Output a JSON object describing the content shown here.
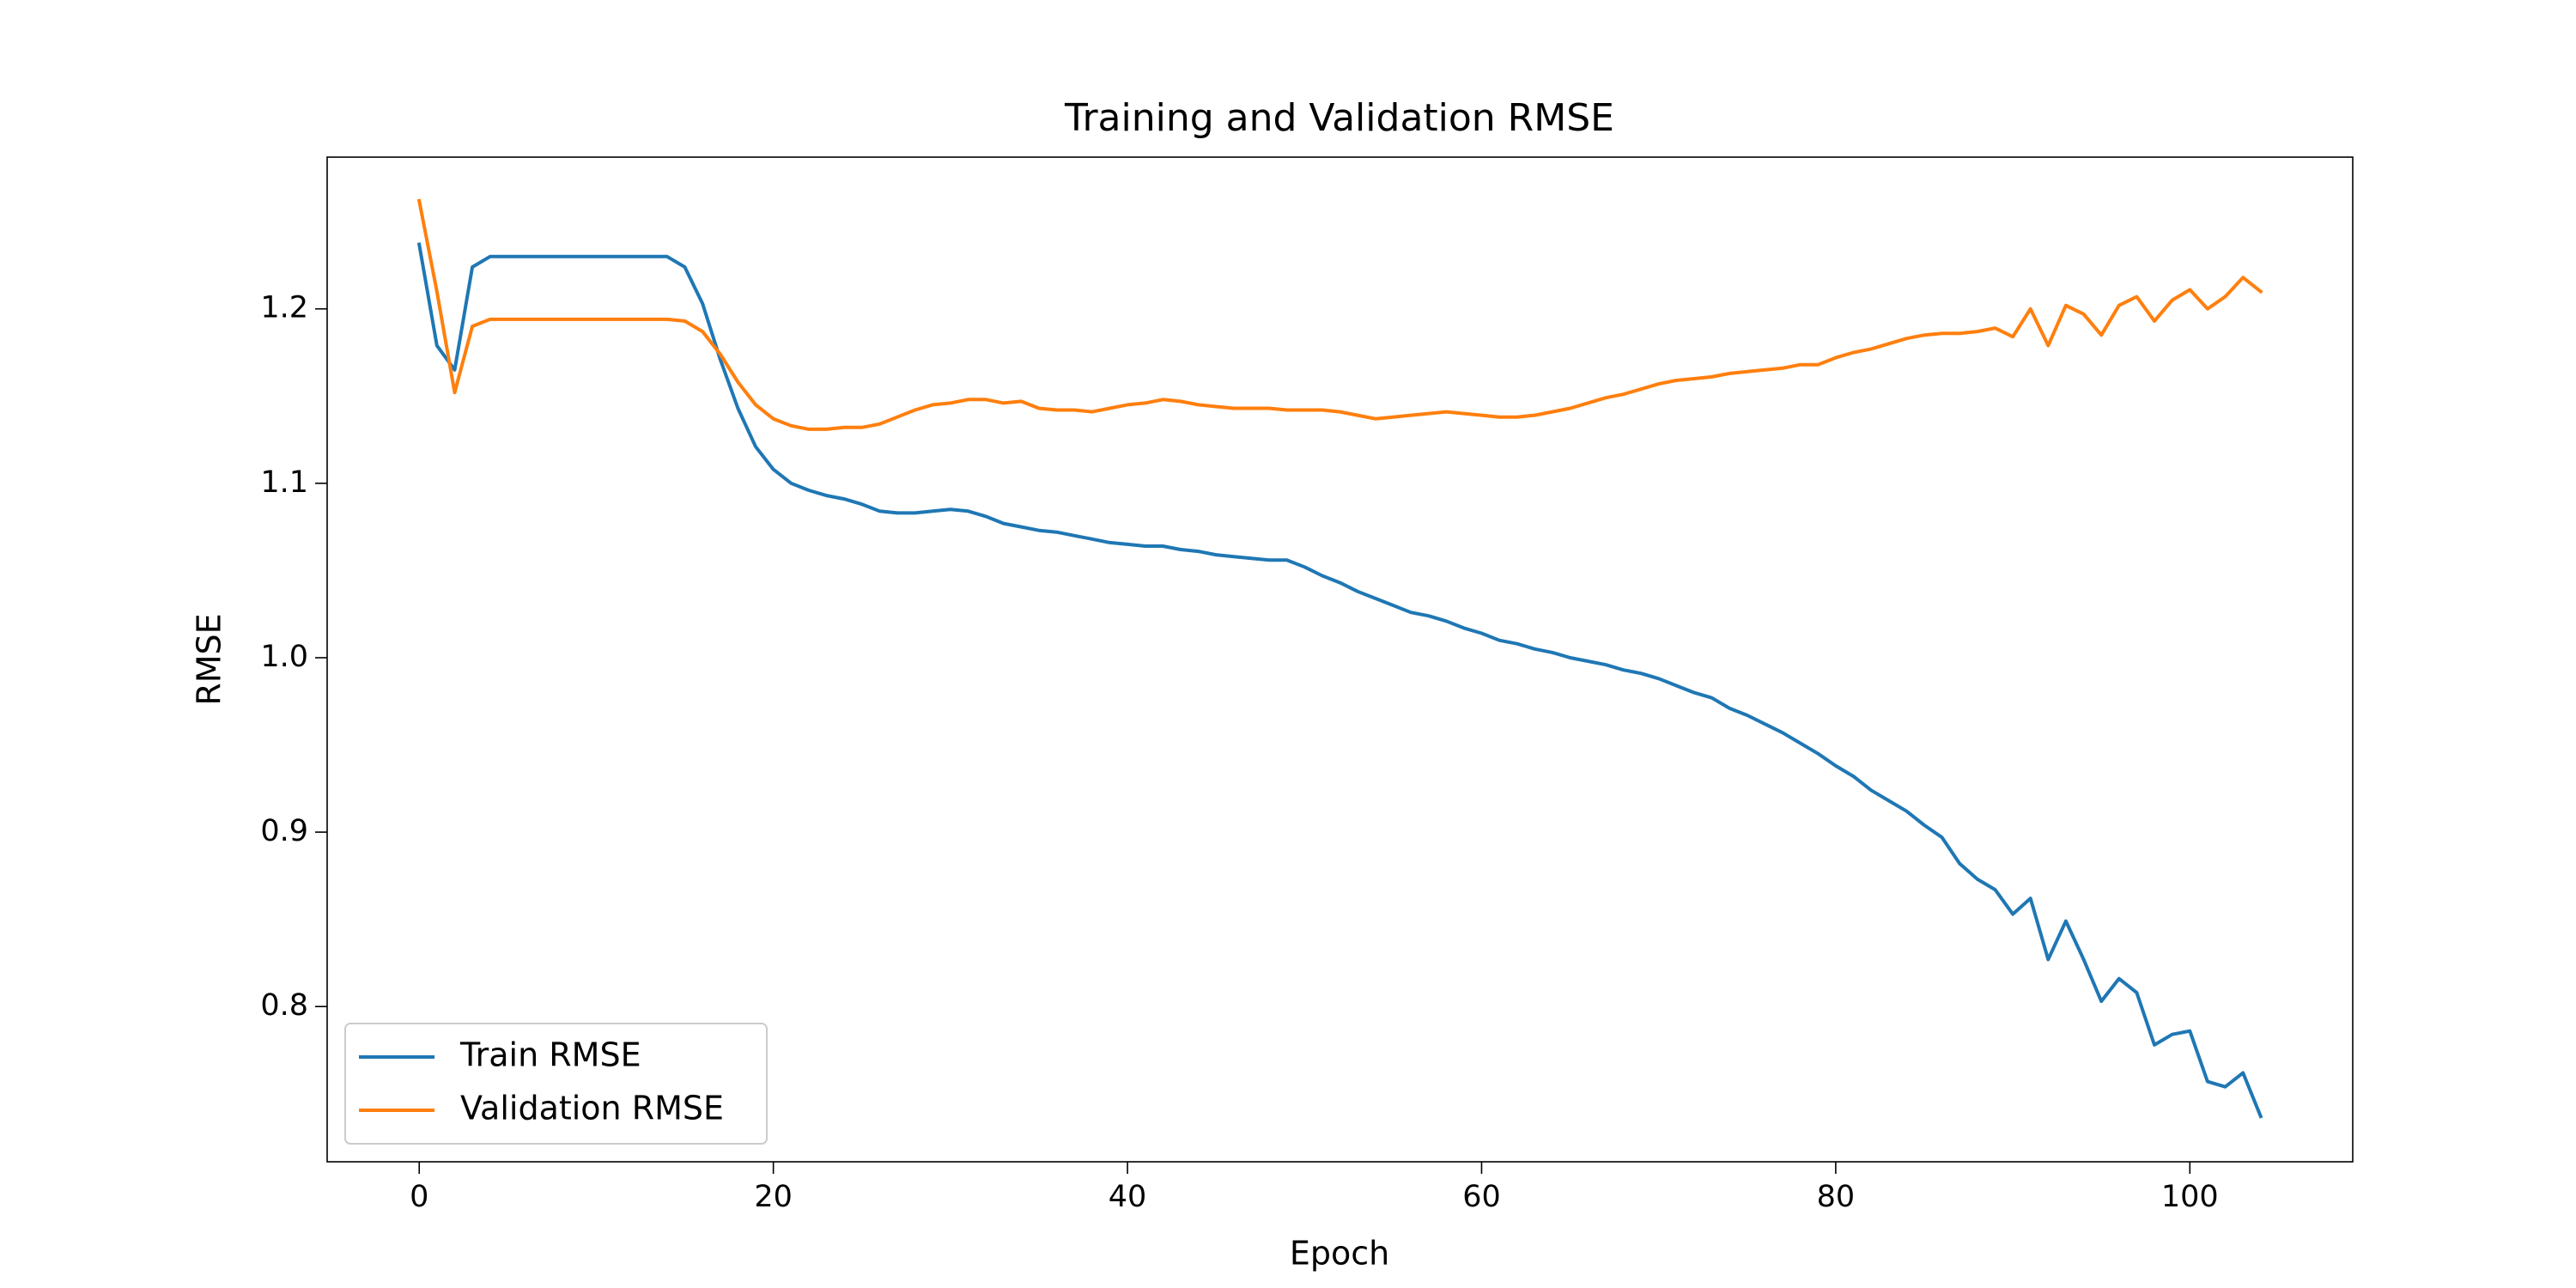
{
  "chart_data": {
    "type": "line",
    "title": "Training and Validation RMSE",
    "x_label": "Epoch",
    "y_label": "RMSE",
    "x": [
      0,
      1,
      2,
      3,
      4,
      5,
      6,
      7,
      8,
      9,
      10,
      11,
      12,
      13,
      14,
      15,
      16,
      17,
      18,
      19,
      20,
      21,
      22,
      23,
      24,
      25,
      26,
      27,
      28,
      29,
      30,
      31,
      32,
      33,
      34,
      35,
      36,
      37,
      38,
      39,
      40,
      41,
      42,
      43,
      44,
      45,
      46,
      47,
      48,
      49,
      50,
      51,
      52,
      53,
      54,
      55,
      56,
      57,
      58,
      59,
      60,
      61,
      62,
      63,
      64,
      65,
      66,
      67,
      68,
      69,
      70,
      71,
      72,
      73,
      74,
      75,
      76,
      77,
      78,
      79,
      80,
      81,
      82,
      83,
      84,
      85,
      86,
      87,
      88,
      89,
      90,
      91,
      92,
      93,
      94,
      95,
      96,
      97,
      98,
      99,
      100,
      101,
      102,
      103,
      104
    ],
    "series": [
      {
        "name": "Train RMSE",
        "color": "#1f77b4",
        "values": [
          1.237,
          1.179,
          1.165,
          1.224,
          1.23,
          1.23,
          1.23,
          1.23,
          1.23,
          1.23,
          1.23,
          1.23,
          1.23,
          1.23,
          1.23,
          1.224,
          1.203,
          1.171,
          1.143,
          1.121,
          1.108,
          1.1,
          1.096,
          1.093,
          1.091,
          1.088,
          1.084,
          1.083,
          1.083,
          1.084,
          1.085,
          1.084,
          1.081,
          1.077,
          1.075,
          1.073,
          1.072,
          1.07,
          1.068,
          1.066,
          1.065,
          1.064,
          1.064,
          1.062,
          1.061,
          1.059,
          1.058,
          1.057,
          1.056,
          1.056,
          1.052,
          1.047,
          1.043,
          1.038,
          1.034,
          1.03,
          1.026,
          1.024,
          1.021,
          1.017,
          1.014,
          1.01,
          1.008,
          1.005,
          1.003,
          1.0,
          0.998,
          0.996,
          0.993,
          0.991,
          0.988,
          0.984,
          0.98,
          0.977,
          0.971,
          0.967,
          0.962,
          0.957,
          0.951,
          0.945,
          0.938,
          0.932,
          0.924,
          0.918,
          0.912,
          0.904,
          0.897,
          0.882,
          0.873,
          0.867,
          0.853,
          0.862,
          0.827,
          0.849,
          0.827,
          0.803,
          0.816,
          0.808,
          0.778,
          0.784,
          0.786,
          0.757,
          0.754,
          0.762,
          0.737
        ]
      },
      {
        "name": "Validation RMSE",
        "color": "#ff7f0e",
        "values": [
          1.262,
          1.21,
          1.152,
          1.19,
          1.194,
          1.194,
          1.194,
          1.194,
          1.194,
          1.194,
          1.194,
          1.194,
          1.194,
          1.194,
          1.194,
          1.193,
          1.187,
          1.174,
          1.158,
          1.145,
          1.137,
          1.133,
          1.131,
          1.131,
          1.132,
          1.132,
          1.134,
          1.138,
          1.142,
          1.145,
          1.146,
          1.148,
          1.148,
          1.146,
          1.147,
          1.143,
          1.142,
          1.142,
          1.141,
          1.143,
          1.145,
          1.146,
          1.148,
          1.147,
          1.145,
          1.144,
          1.143,
          1.143,
          1.143,
          1.142,
          1.142,
          1.142,
          1.141,
          1.139,
          1.137,
          1.138,
          1.139,
          1.14,
          1.141,
          1.14,
          1.139,
          1.138,
          1.138,
          1.139,
          1.141,
          1.143,
          1.146,
          1.149,
          1.151,
          1.154,
          1.157,
          1.159,
          1.16,
          1.161,
          1.163,
          1.164,
          1.165,
          1.166,
          1.168,
          1.168,
          1.172,
          1.175,
          1.177,
          1.18,
          1.183,
          1.185,
          1.186,
          1.186,
          1.187,
          1.189,
          1.184,
          1.2,
          1.179,
          1.202,
          1.197,
          1.185,
          1.202,
          1.207,
          1.193,
          1.205,
          1.211,
          1.2,
          1.207,
          1.218,
          1.21
        ]
      }
    ],
    "xlim": [
      -5.2,
      109.2
    ],
    "xticks": [
      0,
      20,
      40,
      60,
      80,
      100
    ],
    "ylim": [
      0.711,
      1.287
    ],
    "yticks": [
      0.8,
      0.9,
      {
        "value": 1,
        "label": "1.0"
      },
      1.1,
      1.2
    ],
    "legend": "lower left"
  }
}
